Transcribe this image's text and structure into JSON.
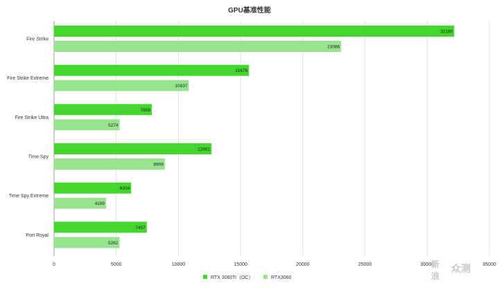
{
  "chart_data": {
    "type": "bar",
    "orientation": "horizontal",
    "title": "GPU基准性能",
    "categories": [
      "Fire Strike",
      "Fire Strike Extreme",
      "Fire Strike Ultra",
      "Time Spy",
      "Time Spy Extreme",
      "Port Royal"
    ],
    "series": [
      {
        "name": "RTX 3060Ti（OC）",
        "color": "#44d62c",
        "values": [
          32180,
          15676,
          7858,
          12661,
          6204,
          7457
        ]
      },
      {
        "name": "RTX3060",
        "color": "#98e38d",
        "values": [
          23086,
          10837,
          5274,
          8909,
          4189,
          5262
        ]
      }
    ],
    "xlim": [
      0,
      35000
    ],
    "xticks": [
      "0",
      "5000",
      "10000",
      "15000",
      "20000",
      "25000",
      "30000",
      "35000"
    ],
    "xtick_values": [
      0,
      5000,
      10000,
      15000,
      20000,
      25000,
      30000,
      35000
    ],
    "grid": true,
    "legend": "bottom-center",
    "data_labels": true
  },
  "watermark": {
    "line1": "新",
    "line2": "浪",
    "text": "众测"
  }
}
